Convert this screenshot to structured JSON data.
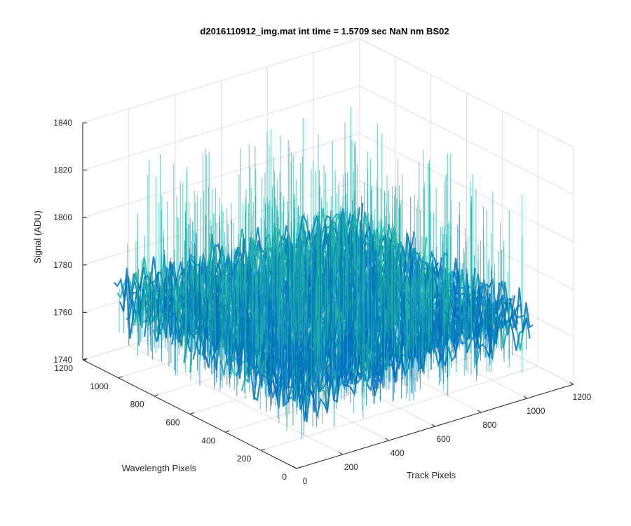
{
  "chart_data": {
    "type": "surface",
    "title": "d2016110912_img.mat int time = 1.5709 sec  NaN nm BS02",
    "xlabel": "Track Pixels",
    "ylabel": "Wavelength Pixels",
    "zlabel": "Signal (ADU)",
    "xlim": [
      0,
      1200
    ],
    "ylim": [
      0,
      1200
    ],
    "zlim": [
      1740,
      1840
    ],
    "xticks": [
      "0",
      "200",
      "400",
      "600",
      "800",
      "1000",
      "1200"
    ],
    "yticks": [
      "0",
      "200",
      "400",
      "600",
      "800",
      "1000",
      "1200"
    ],
    "zticks": [
      "1740",
      "1760",
      "1780",
      "1800",
      "1820",
      "1840"
    ],
    "grid": true,
    "colormap": "parula",
    "data_extent": {
      "x": [
        0,
        1024
      ],
      "y": [
        0,
        1024
      ]
    },
    "signal": {
      "mean": 1773,
      "min": 1745,
      "max": 1830
    },
    "colors": {
      "low": "#0072bd",
      "mid": "#20b2aa",
      "high": "#c8c85a"
    }
  }
}
